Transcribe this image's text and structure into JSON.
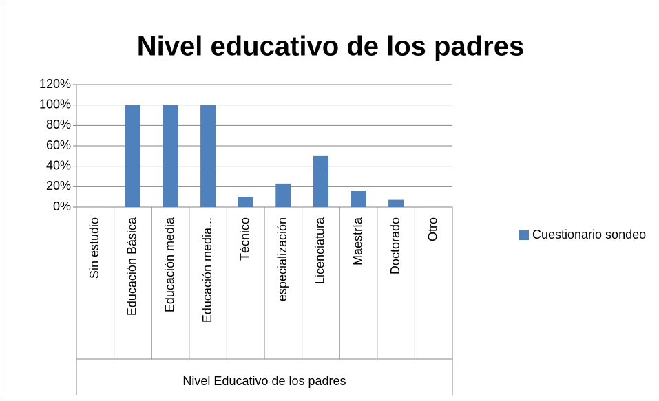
{
  "chart_data": {
    "type": "bar",
    "title": "Nivel educativo de los padres",
    "x_label": "Nivel Educativo de los padres",
    "categories": [
      "Sin estudio",
      "Educación Básica",
      "Educación media",
      "Educación media...",
      "Técnico",
      "especialización",
      "Licenciatura",
      "Maestría",
      "Doctorado",
      "Otro"
    ],
    "series": [
      {
        "name": "Cuestionario sondeo",
        "color": "#4f81bd",
        "values": [
          0,
          100,
          100,
          100,
          10,
          23,
          50,
          16,
          7,
          0
        ]
      }
    ],
    "ylim": [
      0,
      120
    ],
    "yticks": [
      {
        "value": 0,
        "label": "0%"
      },
      {
        "value": 20,
        "label": "20%"
      },
      {
        "value": 40,
        "label": "40%"
      },
      {
        "value": 60,
        "label": "60%"
      },
      {
        "value": 80,
        "label": "80%"
      },
      {
        "value": 100,
        "label": "100%"
      },
      {
        "value": 120,
        "label": "120%"
      }
    ],
    "grid": true,
    "legend": "right"
  }
}
